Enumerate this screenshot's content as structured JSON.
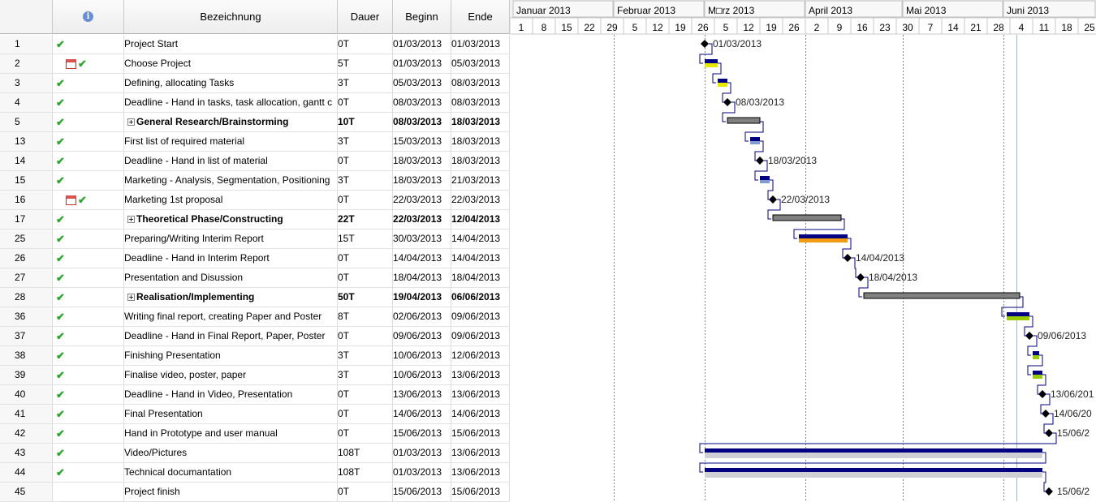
{
  "columns": {
    "info": "i",
    "name": "Bezeichnung",
    "duration": "Dauer",
    "start": "Beginn",
    "end": "Ende"
  },
  "months": [
    {
      "label": "Januar 2013"
    },
    {
      "label": "Februar 2013"
    },
    {
      "label": "M□rz 2013"
    },
    {
      "label": "April 2013"
    },
    {
      "label": "Mai 2013"
    },
    {
      "label": "Juni 2013"
    }
  ],
  "days": [
    "1",
    "8",
    "15",
    "22",
    "29",
    "5",
    "12",
    "19",
    "26",
    "5",
    "12",
    "19",
    "26",
    "2",
    "9",
    "16",
    "23",
    "30",
    "7",
    "14",
    "21",
    "28",
    "4",
    "11",
    "18",
    "25"
  ],
  "tasks": [
    {
      "id": "1",
      "name": "Project Start",
      "dur": "0T",
      "start": "01/03/2013",
      "end": "01/03/2013",
      "icon": "check",
      "bold": false,
      "expand": false,
      "label": "01/03/2013"
    },
    {
      "id": "2",
      "name": "Choose Project",
      "dur": "5T",
      "start": "01/03/2013",
      "end": "05/03/2013",
      "icon": "cal-check",
      "bold": false,
      "expand": false,
      "label": ""
    },
    {
      "id": "3",
      "name": "Defining, allocating Tasks",
      "dur": "3T",
      "start": "05/03/2013",
      "end": "08/03/2013",
      "icon": "check",
      "bold": false,
      "expand": false,
      "label": ""
    },
    {
      "id": "4",
      "name": "Deadline - Hand in tasks, task allocation, gantt c",
      "dur": "0T",
      "start": "08/03/2013",
      "end": "08/03/2013",
      "icon": "check",
      "bold": false,
      "expand": false,
      "label": "08/03/2013"
    },
    {
      "id": "5",
      "name": "General Research/Brainstorming",
      "dur": "10T",
      "start": "08/03/2013",
      "end": "18/03/2013",
      "icon": "check",
      "bold": true,
      "expand": true,
      "label": ""
    },
    {
      "id": "13",
      "name": "First list of required material",
      "dur": "3T",
      "start": "15/03/2013",
      "end": "18/03/2013",
      "icon": "check",
      "bold": false,
      "expand": false,
      "label": ""
    },
    {
      "id": "14",
      "name": "Deadline - Hand in list of material",
      "dur": "0T",
      "start": "18/03/2013",
      "end": "18/03/2013",
      "icon": "check",
      "bold": false,
      "expand": false,
      "label": "18/03/2013"
    },
    {
      "id": "15",
      "name": "Marketing - Analysis, Segmentation, Positioning",
      "dur": "3T",
      "start": "18/03/2013",
      "end": "21/03/2013",
      "icon": "check",
      "bold": false,
      "expand": false,
      "label": ""
    },
    {
      "id": "16",
      "name": "Marketing 1st proposal",
      "dur": "0T",
      "start": "22/03/2013",
      "end": "22/03/2013",
      "icon": "cal-check",
      "bold": false,
      "expand": false,
      "label": "22/03/2013"
    },
    {
      "id": "17",
      "name": "Theoretical Phase/Constructing",
      "dur": "22T",
      "start": "22/03/2013",
      "end": "12/04/2013",
      "icon": "check",
      "bold": true,
      "expand": true,
      "label": ""
    },
    {
      "id": "25",
      "name": "Preparing/Writing Interim Report",
      "dur": "15T",
      "start": "30/03/2013",
      "end": "14/04/2013",
      "icon": "check",
      "bold": false,
      "expand": false,
      "label": ""
    },
    {
      "id": "26",
      "name": "Deadline - Hand in Interim Report",
      "dur": "0T",
      "start": "14/04/2013",
      "end": "14/04/2013",
      "icon": "check",
      "bold": false,
      "expand": false,
      "label": "14/04/2013"
    },
    {
      "id": "27",
      "name": "Presentation and Disussion",
      "dur": "0T",
      "start": "18/04/2013",
      "end": "18/04/2013",
      "icon": "check",
      "bold": false,
      "expand": false,
      "label": "18/04/2013"
    },
    {
      "id": "28",
      "name": "Realisation/Implementing",
      "dur": "50T",
      "start": "19/04/2013",
      "end": "06/06/2013",
      "icon": "check",
      "bold": true,
      "expand": true,
      "label": ""
    },
    {
      "id": "36",
      "name": "Writing final report, creating Paper and Poster",
      "dur": "8T",
      "start": "02/06/2013",
      "end": "09/06/2013",
      "icon": "check",
      "bold": false,
      "expand": false,
      "label": ""
    },
    {
      "id": "37",
      "name": "Deadline - Hand in Final Report, Paper, Poster",
      "dur": "0T",
      "start": "09/06/2013",
      "end": "09/06/2013",
      "icon": "check",
      "bold": false,
      "expand": false,
      "label": "09/06/2013"
    },
    {
      "id": "38",
      "name": "Finishing Presentation",
      "dur": "3T",
      "start": "10/06/2013",
      "end": "12/06/2013",
      "icon": "check",
      "bold": false,
      "expand": false,
      "label": ""
    },
    {
      "id": "39",
      "name": "Finalise video, poster, paper",
      "dur": "3T",
      "start": "10/06/2013",
      "end": "13/06/2013",
      "icon": "check",
      "bold": false,
      "expand": false,
      "label": ""
    },
    {
      "id": "40",
      "name": "Deadline - Hand in Video, Presentation",
      "dur": "0T",
      "start": "13/06/2013",
      "end": "13/06/2013",
      "icon": "check",
      "bold": false,
      "expand": false,
      "label": "13/06/201"
    },
    {
      "id": "41",
      "name": "Final Presentation",
      "dur": "0T",
      "start": "14/06/2013",
      "end": "14/06/2013",
      "icon": "check",
      "bold": false,
      "expand": false,
      "label": "14/06/20"
    },
    {
      "id": "42",
      "name": "Hand in Prototype and user manual",
      "dur": "0T",
      "start": "15/06/2013",
      "end": "15/06/2013",
      "icon": "check",
      "bold": false,
      "expand": false,
      "label": "15/06/2"
    },
    {
      "id": "43",
      "name": "Video/Pictures",
      "dur": "108T",
      "start": "01/03/2013",
      "end": "13/06/2013",
      "icon": "check",
      "bold": false,
      "expand": false,
      "label": ""
    },
    {
      "id": "44",
      "name": "Technical documantation",
      "dur": "108T",
      "start": "01/03/2013",
      "end": "13/06/2013",
      "icon": "check",
      "bold": false,
      "expand": false,
      "label": ""
    },
    {
      "id": "45",
      "name": "Project finish",
      "dur": "0T",
      "start": "15/06/2013",
      "end": "15/06/2013",
      "icon": "none",
      "bold": false,
      "expand": false,
      "label": "15/06/2"
    }
  ],
  "colors": {
    "summary": "#808080",
    "bar": "#000080",
    "progress": "#1f3c88",
    "highlight_yellow": "#e6e600",
    "highlight_green": "#99cc00",
    "highlight_orange": "#f39c12",
    "grid_dotted": "#808080",
    "today_line": "#9ab8d8"
  }
}
